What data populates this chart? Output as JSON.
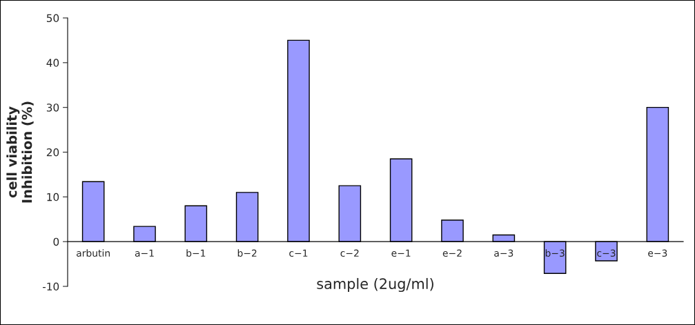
{
  "chart_data": {
    "type": "bar",
    "categories": [
      "arbutin",
      "a−1",
      "b−1",
      "b−2",
      "c−1",
      "c−2",
      "e−1",
      "e−2",
      "a−3",
      "b−3",
      "c−3",
      "e−3"
    ],
    "values": [
      13.4,
      3.4,
      8.0,
      11.0,
      45.0,
      12.5,
      18.5,
      4.8,
      1.5,
      -7.1,
      -4.3,
      30.0
    ],
    "color": "#9999ff",
    "xlabel": "sample (2ug/ml)",
    "ylabel": "cell viability\nInhibition (%)",
    "ylim": [
      -10,
      50
    ],
    "yticks": [
      -10,
      0,
      10,
      20,
      30,
      40,
      50
    ],
    "grid": false,
    "legend": false
  }
}
